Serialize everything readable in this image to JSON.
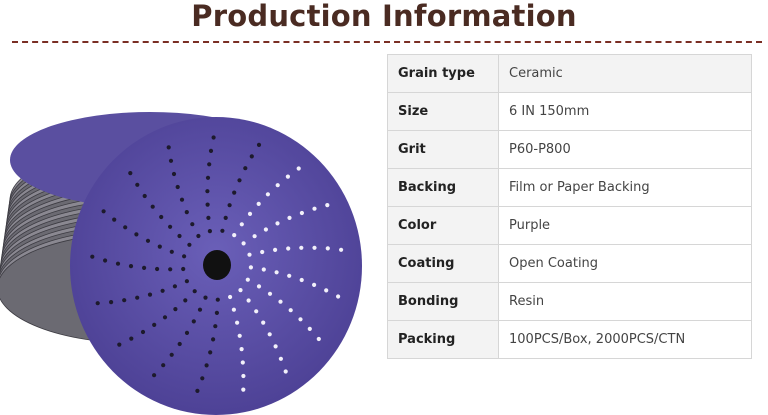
{
  "page": {
    "title": "Production Information"
  },
  "specs": [
    {
      "label": "Grain type",
      "value": "Ceramic"
    },
    {
      "label": "Size",
      "value": "6 IN 150mm"
    },
    {
      "label": "Grit",
      "value": "P60-P800"
    },
    {
      "label": "Backing",
      "value": "Film or Paper Backing"
    },
    {
      "label": "Color",
      "value": "Purple"
    },
    {
      "label": "Coating",
      "value": "Open Coating"
    },
    {
      "label": "Bonding",
      "value": "Resin"
    },
    {
      "label": "Packing",
      "value": "100PCS/Box, 2000PCS/CTN"
    }
  ],
  "colors": {
    "title": "#4a2b22",
    "divider": "#7a2e24",
    "disc": "#5b4fa3"
  }
}
